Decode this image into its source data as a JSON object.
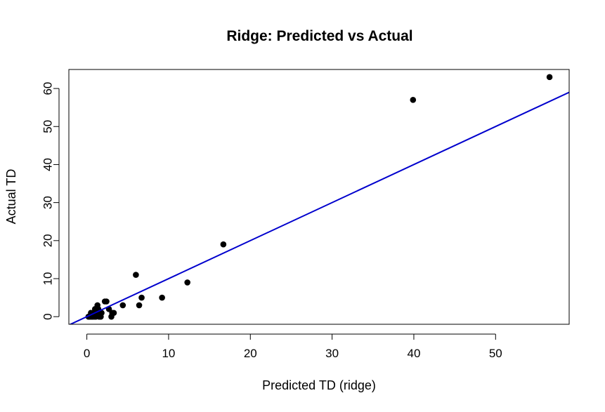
{
  "chart_data": {
    "type": "scatter",
    "title": "Ridge: Predicted vs Actual",
    "xlabel": "Predicted TD (ridge)",
    "ylabel": "Actual TD",
    "xlim": [
      -2.2,
      59
    ],
    "ylim": [
      -2,
      65
    ],
    "xticks": [
      0,
      10,
      20,
      30,
      40,
      50
    ],
    "yticks": [
      0,
      10,
      20,
      30,
      40,
      50,
      60
    ],
    "grid": false,
    "points": [
      {
        "x": 0.2,
        "y": 0
      },
      {
        "x": 0.3,
        "y": 0
      },
      {
        "x": 0.4,
        "y": 0
      },
      {
        "x": 0.5,
        "y": 1
      },
      {
        "x": 0.6,
        "y": 0
      },
      {
        "x": 0.7,
        "y": 0
      },
      {
        "x": 0.8,
        "y": 1
      },
      {
        "x": 0.9,
        "y": 0
      },
      {
        "x": 1.0,
        "y": 2
      },
      {
        "x": 1.1,
        "y": 0
      },
      {
        "x": 1.2,
        "y": 1
      },
      {
        "x": 1.3,
        "y": 3
      },
      {
        "x": 1.4,
        "y": 2
      },
      {
        "x": 1.5,
        "y": 0
      },
      {
        "x": 1.7,
        "y": 0
      },
      {
        "x": 1.8,
        "y": 1
      },
      {
        "x": 2.2,
        "y": 4
      },
      {
        "x": 2.4,
        "y": 4
      },
      {
        "x": 2.7,
        "y": 2
      },
      {
        "x": 3.0,
        "y": 0
      },
      {
        "x": 3.1,
        "y": 1
      },
      {
        "x": 3.3,
        "y": 1
      },
      {
        "x": 4.4,
        "y": 3
      },
      {
        "x": 6.0,
        "y": 11
      },
      {
        "x": 6.4,
        "y": 3
      },
      {
        "x": 6.7,
        "y": 5
      },
      {
        "x": 9.2,
        "y": 5
      },
      {
        "x": 12.3,
        "y": 9
      },
      {
        "x": 16.7,
        "y": 19
      },
      {
        "x": 39.9,
        "y": 57
      },
      {
        "x": 56.6,
        "y": 63
      }
    ],
    "reference_line": {
      "slope": 1,
      "intercept": 0,
      "color": "#0000CD"
    },
    "point_color": "#000000"
  }
}
